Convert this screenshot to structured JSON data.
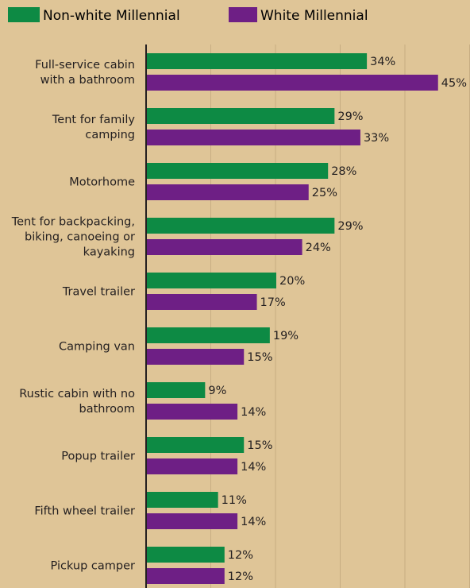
{
  "chart_data": {
    "type": "bar",
    "orientation": "horizontal",
    "categories": [
      "Full-service cabin with a bathroom",
      "Tent for family camping",
      "Motorhome",
      "Tent for backpacking, biking, canoeing or kayaking",
      "Travel trailer",
      "Camping van",
      "Rustic cabin with no bathroom",
      "Popup trailer",
      "Fifth wheel trailer",
      "Pickup camper"
    ],
    "category_lines": [
      [
        "Full-service cabin",
        "with a bathroom"
      ],
      [
        "Tent for family",
        "camping"
      ],
      [
        "Motorhome"
      ],
      [
        "Tent for backpacking,",
        "biking, canoeing or",
        "kayaking"
      ],
      [
        "Travel trailer"
      ],
      [
        "Camping van"
      ],
      [
        "Rustic cabin with no",
        "bathroom"
      ],
      [
        "Popup trailer"
      ],
      [
        "Fifth wheel trailer"
      ],
      [
        "Pickup camper"
      ]
    ],
    "series": [
      {
        "name": "Non-white Millennial",
        "color": "#0d8a44",
        "values": [
          34,
          29,
          28,
          29,
          20,
          19,
          9,
          15,
          11,
          12
        ],
        "labels": [
          "34%",
          "29%",
          "28%",
          "29%",
          "20%",
          "19%",
          "9%",
          "15%",
          "11%",
          "12%"
        ]
      },
      {
        "name": "White Millennial",
        "color": "#6e1f85",
        "values": [
          45,
          33,
          25,
          24,
          17,
          15,
          14,
          14,
          14,
          12
        ],
        "labels": [
          "45%",
          "33%",
          "25%",
          "24%",
          "17%",
          "15%",
          "14%",
          "14%",
          "14%",
          "12%"
        ]
      }
    ],
    "xlim": [
      0,
      50
    ],
    "grid": true,
    "legend_position": "top-left",
    "value_unit": "%"
  },
  "colors": {
    "background": "#dfc597",
    "gridline": "#c7ad82",
    "axis": "#231f20",
    "text": "#231f20"
  }
}
